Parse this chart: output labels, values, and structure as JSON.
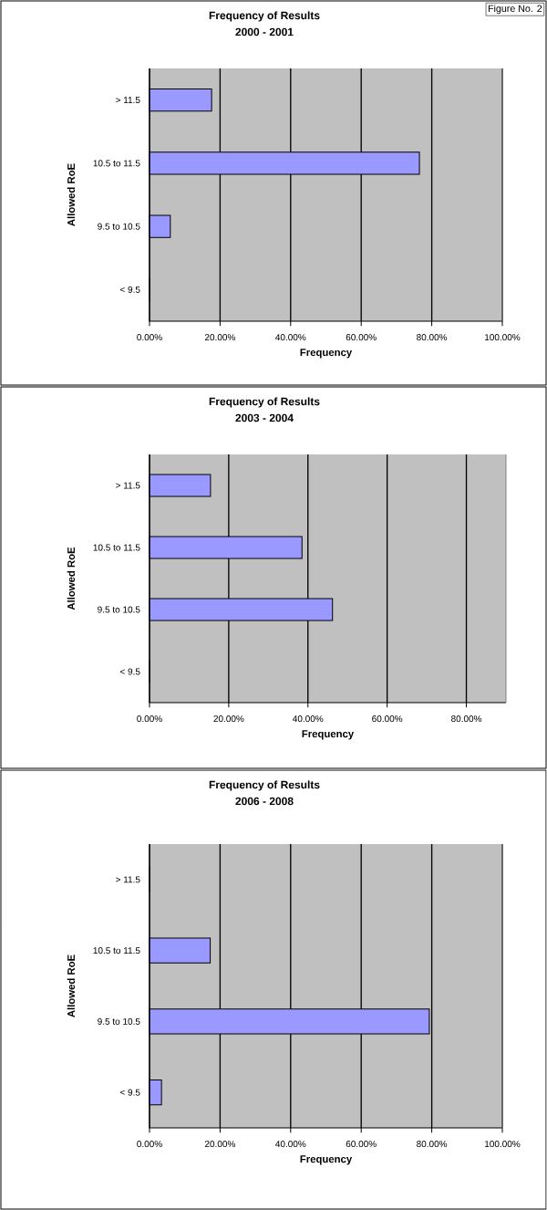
{
  "chart_data": [
    {
      "type": "bar",
      "orientation": "horizontal",
      "title": "Frequency of Results",
      "subtitle": "2000 - 2001",
      "xlabel": "Frequency",
      "ylabel": "Allowed RoE",
      "categories": [
        "> 11.5",
        "10.5 to 11.5",
        "9.5 to 10.5",
        "< 9.5"
      ],
      "values": [
        17.6,
        76.5,
        5.9,
        0
      ],
      "color": "#9999ff",
      "xlim": [
        0,
        100
      ],
      "xticks": [
        {
          "value": 0,
          "label": "0.00%"
        },
        {
          "value": 20,
          "label": "20.00%"
        },
        {
          "value": 40,
          "label": "40.00%"
        },
        {
          "value": 60,
          "label": "60.00%"
        },
        {
          "value": 80,
          "label": "80.00%"
        },
        {
          "value": 100,
          "label": "100.00%"
        }
      ],
      "grid": "x",
      "annotations": [
        "Figure No. 2"
      ]
    },
    {
      "type": "bar",
      "orientation": "horizontal",
      "title": "Frequency of Results",
      "subtitle": "2003 - 2004",
      "xlabel": "Frequency",
      "ylabel": "Allowed RoE",
      "categories": [
        "> 11.5",
        "10.5 to 11.5",
        "9.5 to 10.5",
        "< 9.5"
      ],
      "values": [
        15.4,
        38.5,
        46.2,
        0
      ],
      "color": "#9999ff",
      "xlim": [
        0,
        90
      ],
      "xticks": [
        {
          "value": 0,
          "label": "0.00%"
        },
        {
          "value": 20,
          "label": "20.00%"
        },
        {
          "value": 40,
          "label": "40.00%"
        },
        {
          "value": 60,
          "label": "60.00%"
        },
        {
          "value": 80,
          "label": "80.00%"
        }
      ],
      "grid": "x"
    },
    {
      "type": "bar",
      "orientation": "horizontal",
      "title": "Frequency of Results",
      "subtitle": "2006 - 2008",
      "xlabel": "Frequency",
      "ylabel": "Allowed RoE",
      "categories": [
        "> 11.5",
        "10.5 to 11.5",
        "9.5 to 10.5",
        "< 9.5"
      ],
      "values": [
        0,
        17.2,
        79.3,
        3.4
      ],
      "color": "#9999ff",
      "xlim": [
        0,
        100
      ],
      "xticks": [
        {
          "value": 0,
          "label": "0.00%"
        },
        {
          "value": 20,
          "label": "20.00%"
        },
        {
          "value": 40,
          "label": "40.00%"
        },
        {
          "value": 60,
          "label": "60.00%"
        },
        {
          "value": 80,
          "label": "80.00%"
        },
        {
          "value": 100,
          "label": "100.00%"
        }
      ],
      "grid": "x"
    }
  ]
}
